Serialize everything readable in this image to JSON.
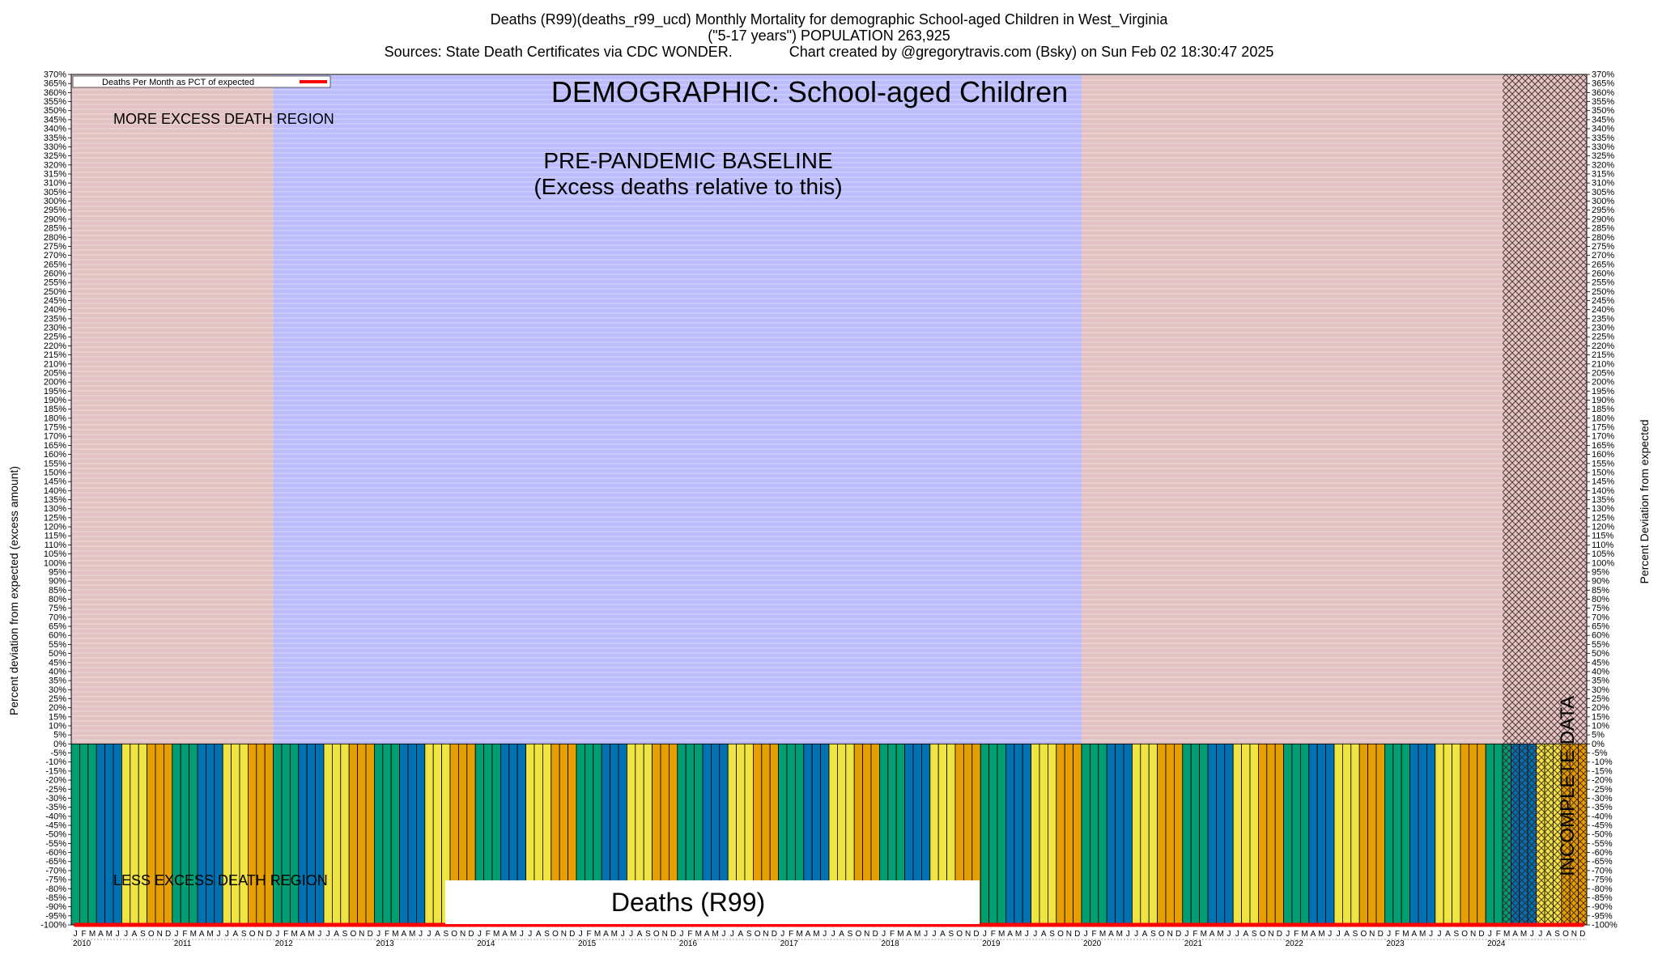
{
  "header": {
    "line1": "Deaths (R99)(deaths_r99_ucd) Monthly Mortality for demographic School-aged Children in West_Virginia",
    "line2": "(\"5-17 years\") POPULATION 263,925",
    "line3": "Sources: State Death Certificates via CDC WONDER.              Chart created by @gregorytravis.com (Bsky) on Sun Feb 02 18:30:47 2025"
  },
  "annotations": {
    "demographic": "DEMOGRAPHIC: School-aged Children",
    "more_excess": "MORE EXCESS DEATH REGION",
    "less_excess": "LESS EXCESS DEATH REGION",
    "baseline_1": "PRE-PANDEMIC BASELINE",
    "baseline_2": "(Excess deaths relative to this)",
    "incomplete": "INCOMPLETE DATA",
    "cause_box": "Deaths (R99)"
  },
  "legend": {
    "label": "Deaths Per Month as PCT of expected"
  },
  "colors": {
    "line": "#ff0000",
    "pink_region": "#e2c2c2",
    "blue_region": "#bcbcfc",
    "green_region": "#cfe8cf",
    "bar_green": "#009e73",
    "bar_blue": "#0072b2",
    "bar_yellow": "#f0e442",
    "bar_orange": "#e69f00",
    "incomplete_hatch": "#3a1f1f"
  },
  "chart_data": {
    "type": "bar",
    "title": "Deaths (R99)(deaths_r99_ucd) Monthly Mortality for demographic School-aged Children in West_Virginia",
    "ylabel": "Percent deviation from expected (excess amount)",
    "ylabel_right": "Percent Deviation from expected",
    "ylim": [
      -100,
      370
    ],
    "ytick_step": 5,
    "y_tick_format": "percent",
    "grid": true,
    "legend_position": "top-left",
    "x_start": "2010-01",
    "x_end": "2024-12",
    "month_letters": [
      "J",
      "F",
      "M",
      "A",
      "M",
      "J",
      "J",
      "A",
      "S",
      "O",
      "N",
      "D"
    ],
    "years": [
      "2010",
      "2011",
      "2012",
      "2013",
      "2014",
      "2015",
      "2016",
      "2017",
      "2018",
      "2019",
      "2020",
      "2021",
      "2022",
      "2023",
      "2024"
    ],
    "baseline_years": [
      "2012",
      "2013",
      "2014",
      "2015",
      "2016",
      "2017",
      "2018",
      "2019"
    ],
    "incomplete_from": "2024-03",
    "series": [
      {
        "name": "Deaths Per Month as PCT of expected",
        "values": [
          -100,
          -100,
          -100,
          -100,
          -100,
          -100,
          -100,
          -100,
          -100,
          -100,
          -100,
          -100,
          -100,
          -100,
          -100,
          -100,
          -100,
          -100,
          -100,
          -100,
          -100,
          -100,
          -100,
          -100,
          -100,
          -100,
          -100,
          -100,
          -100,
          -100,
          -100,
          -100,
          -100,
          -100,
          -100,
          -100,
          -100,
          -100,
          -100,
          -100,
          -100,
          -100,
          -100,
          -100,
          -100,
          -100,
          -100,
          -100,
          -100,
          -100,
          -100,
          -100,
          -100,
          -100,
          -100,
          -100,
          -100,
          -100,
          -100,
          -100,
          -100,
          -100,
          -100,
          -100,
          -100,
          -100,
          -100,
          -100,
          -100,
          -100,
          -100,
          -100,
          -100,
          -100,
          -100,
          -100,
          -100,
          -100,
          -100,
          -100,
          -100,
          -100,
          -100,
          -100,
          -100,
          -100,
          -100,
          -100,
          -100,
          -100,
          -100,
          -100,
          -100,
          -100,
          -100,
          -100,
          -100,
          -100,
          -100,
          -100,
          -100,
          -100,
          -100,
          -100,
          -100,
          -100,
          -100,
          -100,
          -100,
          -100,
          -100,
          -100,
          -100,
          -100,
          -100,
          -100,
          -100,
          -100,
          -100,
          -100,
          -100,
          -100,
          -100,
          -100,
          -100,
          -100,
          -100,
          -100,
          -100,
          -100,
          -100,
          -100,
          -100,
          -100,
          -100,
          -100,
          -100,
          -100,
          -100,
          -100,
          -100,
          -100,
          -100,
          -100,
          -100,
          -100,
          -100,
          -100,
          -100,
          -100,
          -100,
          -100,
          -100,
          -100,
          -100,
          -100,
          -100,
          -100,
          -100,
          -100,
          -100,
          -100,
          -100,
          -100,
          -100,
          -100,
          -100,
          -100,
          -100,
          -100,
          -100,
          -100,
          -100,
          -100,
          -100,
          -100,
          -100,
          -100,
          -100,
          -100
        ]
      }
    ]
  }
}
